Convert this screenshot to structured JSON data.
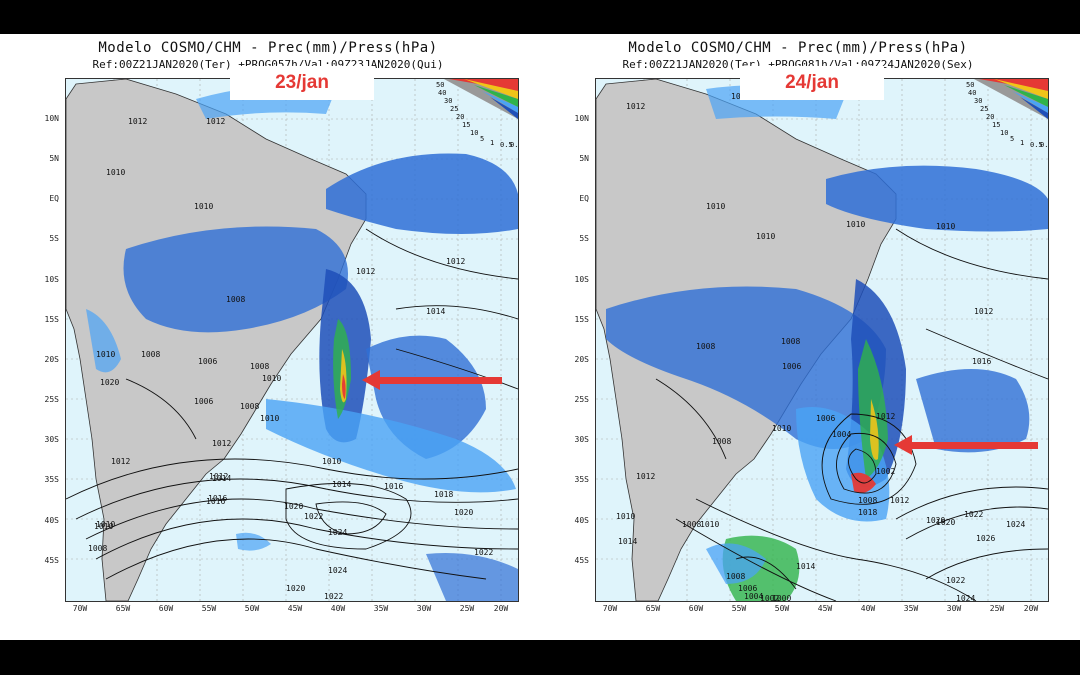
{
  "panels": [
    {
      "title_line1": "Modelo COSMO/CHM  -  Prec(mm)/Press(hPa)",
      "title_line2": "Ref:00Z21JAN2020(Ter)  +PROG057h/Val:09Z23JAN2020(Qui)",
      "date_label": "23/jan",
      "latitudes": [
        "10N",
        "5N",
        "EQ",
        "5S",
        "10S",
        "15S",
        "20S",
        "25S",
        "30S",
        "35S",
        "40S",
        "45S"
      ],
      "longitudes": [
        "70W",
        "65W",
        "60W",
        "55W",
        "50W",
        "45W",
        "40W",
        "35W",
        "30W",
        "25W",
        "20W"
      ],
      "legend_values": [
        "50",
        "40",
        "30",
        "25",
        "20",
        "15",
        "10",
        "5",
        "1",
        "0.5",
        "0.1"
      ],
      "isobars": [
        "1012",
        "1012",
        "1010",
        "1010",
        "1008",
        "1006",
        "1008",
        "1010",
        "1012",
        "1014",
        "1012",
        "1010",
        "1014",
        "1016",
        "1018",
        "1020",
        "1022",
        "1024",
        "1024",
        "1022",
        "1020",
        "1020",
        "1022",
        "1016",
        "1010",
        "1008",
        "1012",
        "1012",
        "1008",
        "1010",
        "1006",
        "1008",
        "1010",
        "1012",
        "1010",
        "1020",
        "1014",
        "1016"
      ],
      "arrow": "red-arrow-pointing-west"
    },
    {
      "title_line1": "Modelo COSMO/CHM  -  Prec(mm)/Press(hPa)",
      "title_line2": "Ref:00Z21JAN2020(Ter)  +PROG081h/Val:09Z24JAN2020(Sex)",
      "date_label": "24/jan",
      "latitudes": [
        "10N",
        "5N",
        "EQ",
        "5S",
        "10S",
        "15S",
        "20S",
        "25S",
        "30S",
        "35S",
        "40S",
        "45S"
      ],
      "longitudes": [
        "70W",
        "65W",
        "60W",
        "55W",
        "50W",
        "45W",
        "40W",
        "35W",
        "30W",
        "25W",
        "20W"
      ],
      "legend_values": [
        "50",
        "40",
        "30",
        "25",
        "20",
        "15",
        "10",
        "5",
        "1",
        "0.5",
        "0.1"
      ],
      "isobars": [
        "1012",
        "1012",
        "1010",
        "1010",
        "1010",
        "1010",
        "1012",
        "1008",
        "1006",
        "1008",
        "1006",
        "1004",
        "1008",
        "1010",
        "1012",
        "1002",
        "1008",
        "1012",
        "1016",
        "1018",
        "1020",
        "1022",
        "1024",
        "1026",
        "1024",
        "1022",
        "1014",
        "1010",
        "1008",
        "1008",
        "1006",
        "1004",
        "1002",
        "1000",
        "1012",
        "1010",
        "1014",
        "1020"
      ],
      "arrow": "red-arrow-pointing-west"
    }
  ]
}
